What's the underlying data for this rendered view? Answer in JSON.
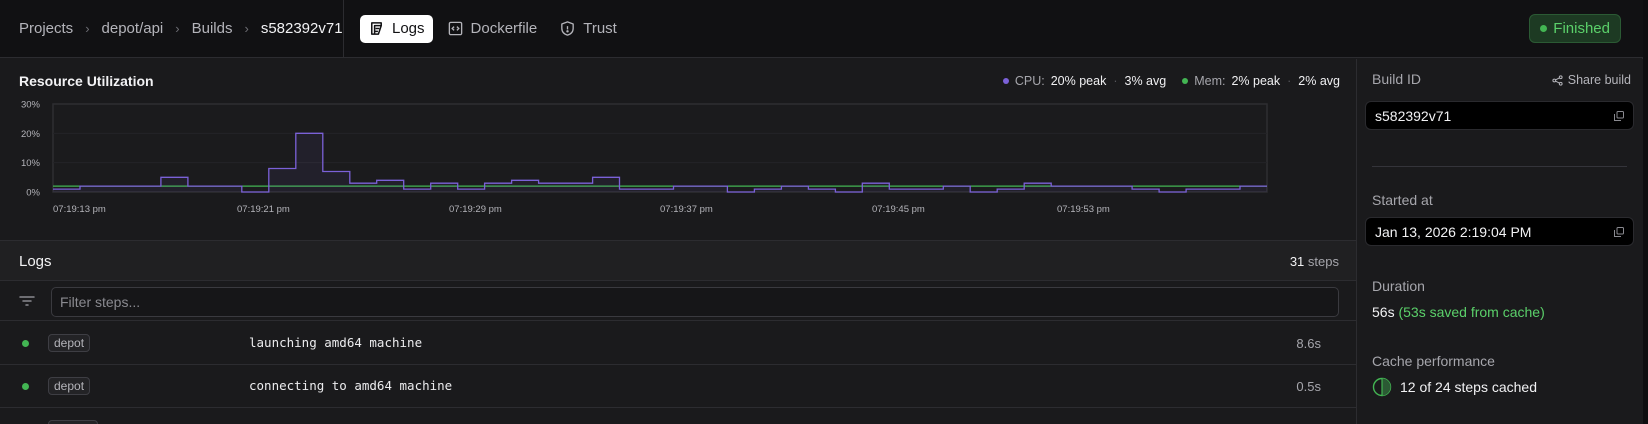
{
  "header": {
    "breadcrumb": [
      {
        "label": "Projects"
      },
      {
        "label": "depot/api"
      },
      {
        "label": "Builds"
      },
      {
        "label": "s582392v71"
      }
    ],
    "tabs": [
      {
        "label": "Logs",
        "icon": "scroll-icon",
        "active": true
      },
      {
        "label": "Dockerfile",
        "icon": "code-icon",
        "active": false
      },
      {
        "label": "Trust",
        "icon": "shield-icon",
        "active": false
      }
    ],
    "status": {
      "label": "Finished",
      "color": "#43b553"
    }
  },
  "resource": {
    "title": "Resource Utilization",
    "cpu": {
      "label": "CPU:",
      "peak": "20% peak",
      "avg": "3% avg",
      "color": "#7b61d8"
    },
    "mem": {
      "label": "Mem:",
      "peak": "2% peak",
      "avg": "2% avg",
      "color": "#43b553"
    }
  },
  "chart_data": {
    "type": "line",
    "title": "Resource Utilization",
    "xlabel": "",
    "ylabel": "",
    "ylim": [
      0,
      30
    ],
    "yticks": [
      "0%",
      "10%",
      "20%",
      "30%"
    ],
    "xticks": [
      "07:19:13 pm",
      "07:19:21 pm",
      "07:19:29 pm",
      "07:19:37 pm",
      "07:19:45 pm",
      "07:19:53 pm"
    ],
    "grid": true,
    "step": true,
    "series": [
      {
        "name": "CPU",
        "color": "#7b61d8",
        "values": [
          1,
          2,
          2,
          2,
          5,
          2,
          2,
          0,
          8,
          20,
          7,
          3,
          4,
          1,
          3,
          1,
          3,
          4,
          3,
          3,
          5,
          1,
          1,
          2,
          2,
          0,
          1,
          2,
          1,
          0,
          3,
          1,
          1,
          2,
          0,
          1,
          3,
          2,
          2,
          2,
          1,
          0,
          1,
          1,
          2
        ]
      },
      {
        "name": "Mem",
        "color": "#43b553",
        "values": [
          2,
          2,
          2,
          2,
          2,
          2,
          2,
          2,
          2,
          2,
          2,
          2,
          2,
          2,
          2,
          2,
          2,
          2,
          2,
          2,
          2,
          2,
          2,
          2,
          2,
          2,
          2,
          2,
          2,
          2,
          2,
          2,
          2,
          2,
          2,
          2,
          2,
          2,
          2,
          2,
          2,
          2,
          2,
          2,
          2
        ]
      }
    ]
  },
  "logs": {
    "title": "Logs",
    "steps_count": "31",
    "steps_label": "steps",
    "filter_placeholder": "Filter steps...",
    "filter_value": "",
    "rows": [
      {
        "source": "depot",
        "text": "launching amd64 machine",
        "duration": "8.6s",
        "status": "success"
      },
      {
        "source": "depot",
        "text": "connecting to amd64 machine",
        "duration": "0.5s",
        "status": "success"
      },
      {
        "source": "",
        "text": "",
        "duration": "",
        "status": "success"
      }
    ]
  },
  "sidebar": {
    "build_id_label": "Build ID",
    "share_label": "Share build",
    "build_id": "s582392v71",
    "started_label": "Started at",
    "started_at": "Jan 13, 2026 2:19:04 PM",
    "duration_label": "Duration",
    "duration": "56s",
    "duration_saved": "(53s saved from cache)",
    "cache_label": "Cache performance",
    "cache_text": "12 of 24 steps cached",
    "cached_steps": 12,
    "total_steps": 24
  }
}
